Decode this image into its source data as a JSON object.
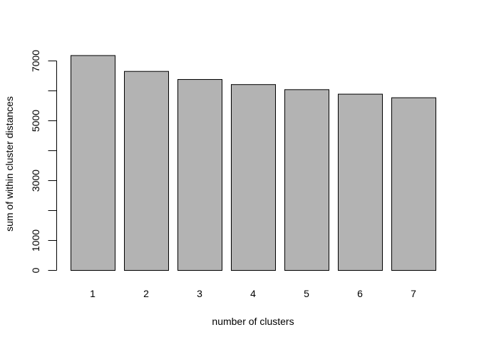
{
  "chart_data": {
    "type": "bar",
    "categories": [
      "1",
      "2",
      "3",
      "4",
      "5",
      "6",
      "7"
    ],
    "values": [
      7180,
      6650,
      6380,
      6210,
      6040,
      5890,
      5770
    ],
    "title": "",
    "xlabel": "number of clusters",
    "ylabel": "sum of within cluster distances",
    "ylim": [
      0,
      7000
    ],
    "y_tick_values": [
      0,
      1000,
      2000,
      3000,
      4000,
      5000,
      6000,
      7000
    ],
    "y_tick_labels": [
      "0",
      "1000",
      "",
      "3000",
      "",
      "5000",
      "",
      "7000"
    ],
    "bar_color": "#b3b3b3",
    "bar_border_color": "#000000",
    "grid": false,
    "legend": "none"
  }
}
